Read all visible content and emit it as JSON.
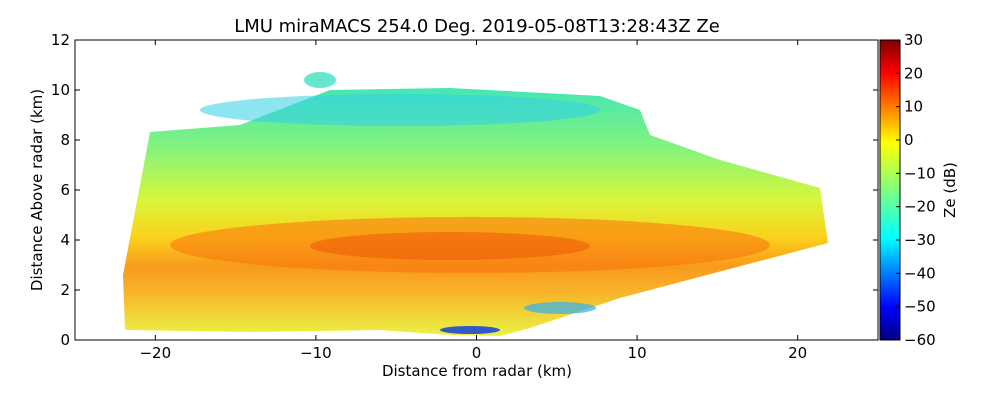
{
  "chart_data": {
    "type": "heatmap",
    "title": "LMU miraMACS 254.0 Deg. 2019-05-08T13:28:43Z  Ze",
    "xlabel": "Distance from radar (km)",
    "ylabel": "Distance Above radar  (km)",
    "xlim": [
      -25,
      25
    ],
    "ylim": [
      0,
      12
    ],
    "xticks": [
      -20,
      -10,
      0,
      10,
      20
    ],
    "xtick_labels": [
      "−20",
      "−10",
      "0",
      "10",
      "20"
    ],
    "yticks": [
      0,
      2,
      4,
      6,
      8,
      10,
      12
    ],
    "ytick_labels": [
      "0",
      "2",
      "4",
      "6",
      "8",
      "10",
      "12"
    ],
    "colorbar": {
      "label": "Ze (dB)",
      "range": [
        -60,
        30
      ],
      "ticks": [
        -60,
        -50,
        -40,
        -30,
        -20,
        -10,
        0,
        10,
        20,
        30
      ],
      "tick_labels": [
        "−60",
        "−50",
        "−40",
        "−30",
        "−20",
        "−10",
        "0",
        "10",
        "20",
        "30"
      ],
      "colormap": "jet"
    },
    "scan_region": {
      "left_edge_x": -22,
      "left_edge_y_range": [
        2.5,
        8.2
      ],
      "right_edge_x": 21.8,
      "right_edge_y_range": [
        3.9,
        6.0
      ],
      "cloud_top_km": 10.8,
      "bright_band_height_km": 3.7,
      "bright_band_peak_dBZ": 15
    }
  }
}
